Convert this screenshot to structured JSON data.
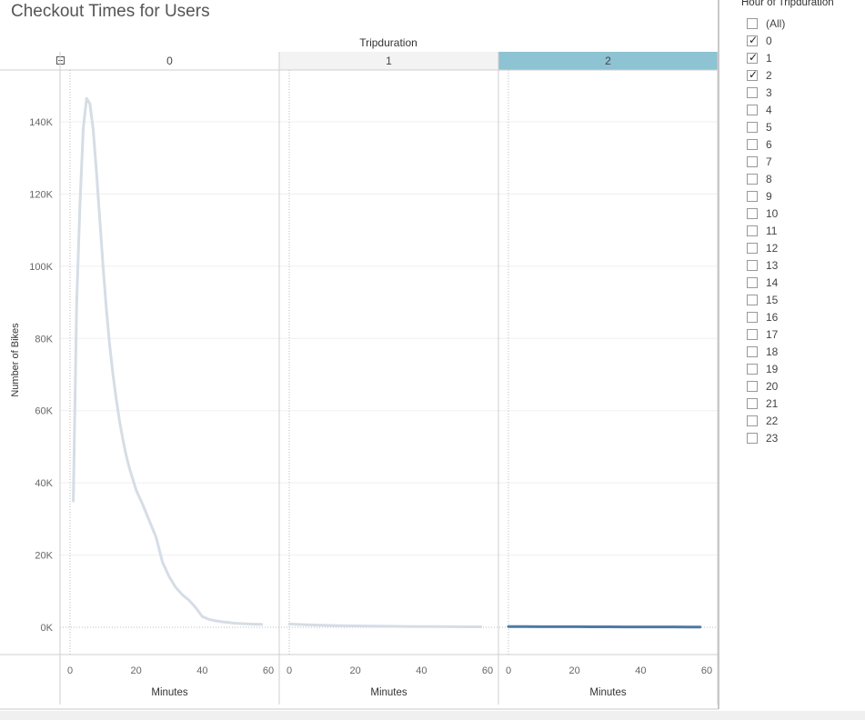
{
  "title": "Checkout Times for Users",
  "column_header": "Tripduration",
  "filter": {
    "title": "Hour of Tripduration",
    "items": [
      {
        "label": "(All)",
        "checked": false
      },
      {
        "label": "0",
        "checked": true
      },
      {
        "label": "1",
        "checked": true
      },
      {
        "label": "2",
        "checked": true
      },
      {
        "label": "3",
        "checked": false
      },
      {
        "label": "4",
        "checked": false
      },
      {
        "label": "5",
        "checked": false
      },
      {
        "label": "6",
        "checked": false
      },
      {
        "label": "7",
        "checked": false
      },
      {
        "label": "8",
        "checked": false
      },
      {
        "label": "9",
        "checked": false
      },
      {
        "label": "10",
        "checked": false
      },
      {
        "label": "11",
        "checked": false
      },
      {
        "label": "12",
        "checked": false
      },
      {
        "label": "13",
        "checked": false
      },
      {
        "label": "14",
        "checked": false
      },
      {
        "label": "15",
        "checked": false
      },
      {
        "label": "16",
        "checked": false
      },
      {
        "label": "17",
        "checked": false
      },
      {
        "label": "18",
        "checked": false
      },
      {
        "label": "19",
        "checked": false
      },
      {
        "label": "20",
        "checked": false
      },
      {
        "label": "21",
        "checked": false
      },
      {
        "label": "22",
        "checked": false
      },
      {
        "label": "23",
        "checked": false
      }
    ]
  },
  "colors": {
    "line_default": "#d5dde5",
    "line_selected": "#4e79a7",
    "header_selected": "#8dc3d3",
    "header_default": "#f3f3f3"
  },
  "chart_data": {
    "type": "line",
    "ylabel": "Number of Bikes",
    "xlabel": "Minutes",
    "ylim": [
      0,
      150000
    ],
    "xlim": [
      0,
      60
    ],
    "y_ticks": [
      "0K",
      "20K",
      "40K",
      "60K",
      "80K",
      "100K",
      "120K",
      "140K"
    ],
    "y_tick_values": [
      0,
      20000,
      40000,
      60000,
      80000,
      100000,
      120000,
      140000
    ],
    "x_ticks": [
      "0",
      "20",
      "40",
      "60"
    ],
    "x_tick_values": [
      0,
      20,
      40,
      60
    ],
    "panes": [
      {
        "label": "0",
        "selected": false,
        "x": [
          1,
          2,
          3,
          4,
          5,
          6,
          7,
          8,
          9,
          10,
          11,
          12,
          13,
          14,
          15,
          16,
          17,
          18,
          19,
          20,
          22,
          24,
          26,
          28,
          30,
          32,
          34,
          36,
          38,
          40,
          42,
          44,
          46,
          48,
          50,
          52,
          54,
          56,
          58
        ],
        "y": [
          35000,
          90000,
          117000,
          138000,
          146500,
          145000,
          138000,
          126000,
          113000,
          100000,
          88000,
          78000,
          70000,
          63000,
          57000,
          52000,
          47500,
          44000,
          41000,
          38000,
          34000,
          29500,
          25000,
          18000,
          14000,
          11000,
          9000,
          7500,
          5500,
          3000,
          2200,
          1800,
          1500,
          1300,
          1100,
          1000,
          900,
          850,
          800
        ],
        "__note_y": "approximate"
      },
      {
        "label": "1",
        "selected": false,
        "x": [
          0,
          5,
          10,
          15,
          20,
          25,
          30,
          35,
          40,
          45,
          50,
          55,
          58
        ],
        "y": [
          900,
          700,
          550,
          450,
          380,
          320,
          270,
          230,
          200,
          170,
          150,
          130,
          120
        ]
      },
      {
        "label": "2",
        "selected": true,
        "x": [
          0,
          5,
          10,
          15,
          20,
          25,
          30,
          35,
          40,
          45,
          50,
          55,
          58
        ],
        "y": [
          200,
          180,
          160,
          150,
          140,
          130,
          120,
          110,
          100,
          95,
          90,
          85,
          80
        ]
      }
    ]
  }
}
